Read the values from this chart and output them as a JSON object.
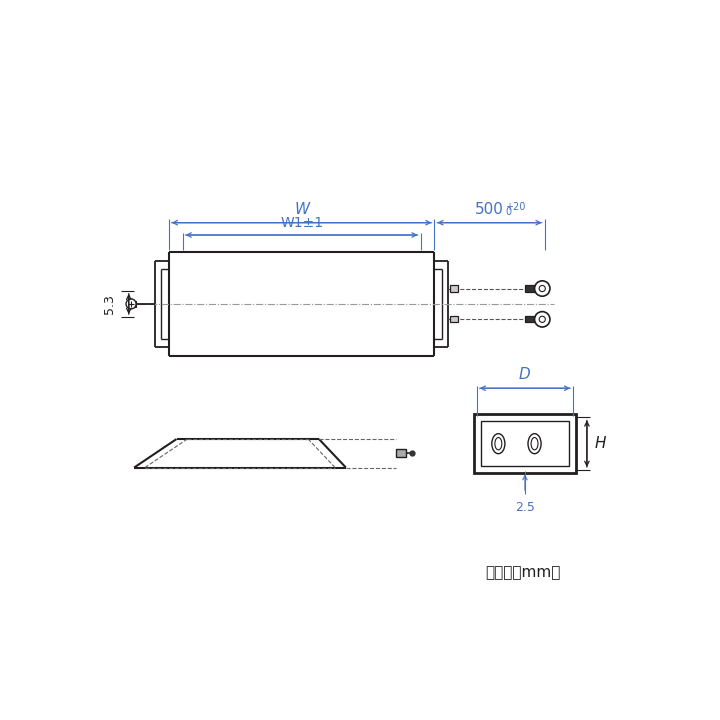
{
  "bg_color": "#ffffff",
  "line_color": "#231f20",
  "dim_color": "#4472c4",
  "fig_width": 7.2,
  "fig_height": 7.2,
  "unit_text": "（単位：mm）",
  "W_label": "W",
  "W1_label": "W1±1",
  "cable_label": "500",
  "cable_superscript": "+20",
  "cable_subscript": "0",
  "dim_53": "5.3",
  "dim_25": "2.5",
  "D_label": "D",
  "H_label": "H"
}
